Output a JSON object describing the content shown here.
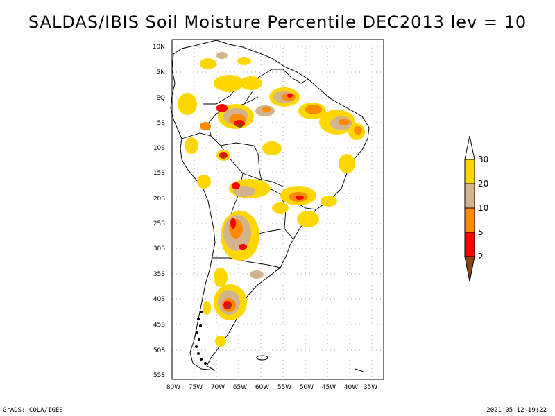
{
  "title": "SALDAS/IBIS Soil Moisture Percentile DEC2013 lev = 10",
  "footer_left": "GrADS: COLA/IGES",
  "footer_right": "2021-05-12-19:22",
  "map": {
    "region": "South America",
    "lat_labels": [
      "10N",
      "5N",
      "EQ",
      "5S",
      "10S",
      "15S",
      "20S",
      "25S",
      "30S",
      "35S",
      "40S",
      "45S",
      "50S",
      "55S"
    ],
    "lon_labels": [
      "80W",
      "75W",
      "70W",
      "65W",
      "60W",
      "55W",
      "50W",
      "45W",
      "40W",
      "35W"
    ],
    "grid": "dotted"
  },
  "colorbar": {
    "labels": [
      "30",
      "20",
      "10",
      "5",
      "2"
    ],
    "colors": {
      "above_30": "#ffffff",
      "20_30": "#ffd700",
      "10_20": "#d2b48c",
      "5_10": "#ff8c00",
      "2_5": "#ff0000",
      "below_2": "#8b4513"
    }
  }
}
